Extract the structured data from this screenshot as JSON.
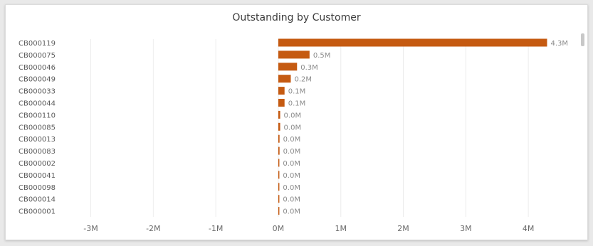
{
  "chart_data": {
    "type": "bar",
    "orientation": "horizontal",
    "title": "Outstanding by Customer",
    "categories": [
      "CB000119",
      "CB000075",
      "CB000046",
      "CB000049",
      "CB000033",
      "CB000044",
      "CB000110",
      "CB000085",
      "CB000013",
      "CB000083",
      "CB000002",
      "CB000041",
      "CB000098",
      "CB000014",
      "CB000001"
    ],
    "values": [
      4.3,
      0.5,
      0.3,
      0.2,
      0.1,
      0.1,
      0.03,
      0.03,
      0.02,
      0.02,
      0.01,
      0.01,
      0.01,
      0.005,
      0.002
    ],
    "data_labels": [
      "4.3M",
      "0.5M",
      "0.3M",
      "0.2M",
      "0.1M",
      "0.1M",
      "0.0M",
      "0.0M",
      "0.0M",
      "0.0M",
      "0.0M",
      "0.0M",
      "0.0M",
      "0.0M",
      "0.0M"
    ],
    "x_ticks": [
      -3,
      -2,
      -1,
      0,
      1,
      2,
      3,
      4
    ],
    "x_tick_labels": [
      "-3M",
      "-2M",
      "-1M",
      "0M",
      "1M",
      "2M",
      "3M",
      "4M"
    ],
    "xlim": [
      -3.45,
      4.75
    ],
    "units": "M",
    "bar_color": "#c55a11",
    "grid": true,
    "legend": "none"
  }
}
